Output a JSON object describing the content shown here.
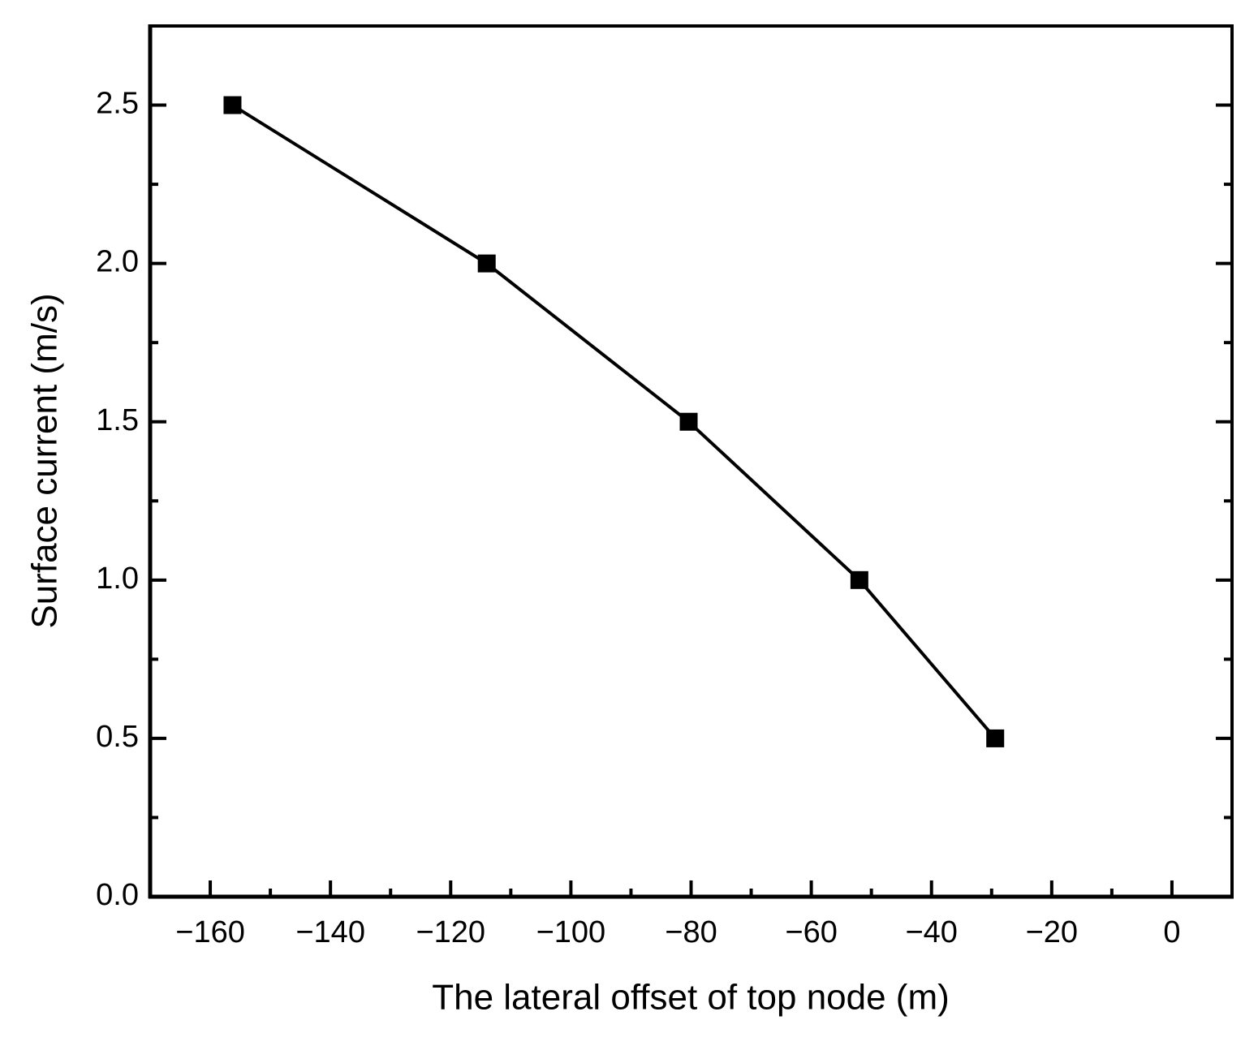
{
  "chart_data": {
    "type": "line",
    "x_label": "The lateral offset of top node (m)",
    "y_label": "Surface current (m/s)",
    "x": [
      -156.3,
      -114,
      -80.4,
      -52,
      -29.4
    ],
    "values": [
      2.5,
      2.0,
      1.5,
      1.0,
      0.5
    ],
    "color": "#000000",
    "marker": "square",
    "xlim": [
      -170,
      10
    ],
    "xticks": [
      {
        "value": -160,
        "label": "−160"
      },
      {
        "value": -140,
        "label": "−140"
      },
      {
        "value": -120,
        "label": "−120"
      },
      {
        "value": -100,
        "label": "−100"
      },
      {
        "value": -80,
        "label": "−80"
      },
      {
        "value": -60,
        "label": "−60"
      },
      {
        "value": -40,
        "label": "−40"
      },
      {
        "value": -20,
        "label": "−20"
      },
      0
    ],
    "ylim": [
      0,
      2.75
    ],
    "yticks": [
      {
        "value": 0,
        "label": "0.0"
      },
      0.5,
      {
        "value": 1,
        "label": "1.0"
      },
      1.5,
      {
        "value": 2,
        "label": "2.0"
      },
      2.5
    ],
    "grid": false
  }
}
